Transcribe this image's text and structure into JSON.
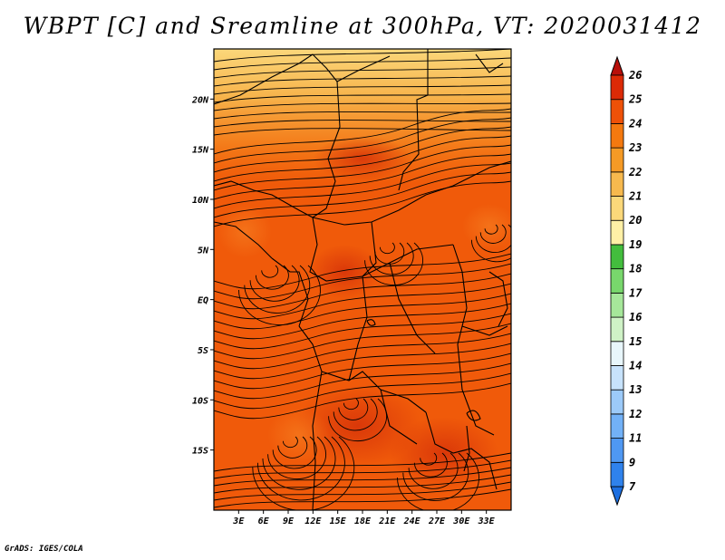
{
  "title": "WBPT [C] and Sreamline at 300hPa, VT: 2020031412",
  "credit": "GrADS: IGES/COLA",
  "map": {
    "lon_range": [
      0,
      36
    ],
    "lat_range": [
      -21,
      25
    ],
    "lon_ticks": [
      {
        "value": 3,
        "label": "3E"
      },
      {
        "value": 6,
        "label": "6E"
      },
      {
        "value": 9,
        "label": "9E"
      },
      {
        "value": 12,
        "label": "12E"
      },
      {
        "value": 15,
        "label": "15E"
      },
      {
        "value": 18,
        "label": "18E"
      },
      {
        "value": 21,
        "label": "21E"
      },
      {
        "value": 24,
        "label": "24E"
      },
      {
        "value": 27,
        "label": "27E"
      },
      {
        "value": 30,
        "label": "30E"
      },
      {
        "value": 33,
        "label": "33E"
      }
    ],
    "lat_ticks": [
      {
        "value": 20,
        "label": "20N"
      },
      {
        "value": 15,
        "label": "15N"
      },
      {
        "value": 10,
        "label": "10N"
      },
      {
        "value": 5,
        "label": "5N"
      },
      {
        "value": 0,
        "label": "EQ"
      },
      {
        "value": -5,
        "label": "5S"
      },
      {
        "value": -10,
        "label": "10S"
      },
      {
        "value": -15,
        "label": "15S"
      }
    ]
  },
  "colorbar": {
    "labels": [
      "7",
      "9",
      "11",
      "12",
      "13",
      "14",
      "15",
      "16",
      "17",
      "18",
      "19",
      "20",
      "21",
      "22",
      "23",
      "24",
      "25",
      "26"
    ],
    "colors": [
      "#1d6fe0",
      "#2f82ec",
      "#4f98f2",
      "#72b1f7",
      "#9ccaf9",
      "#c7e2fb",
      "#e8f6fb",
      "#cff2c6",
      "#a6e79a",
      "#78d76c",
      "#43bd3d",
      "#fff0a6",
      "#fbd87a",
      "#f7b94e",
      "#f59a25",
      "#f4790f",
      "#ee5108",
      "#dc2a06",
      "#b80f0a"
    ]
  },
  "colors": {
    "map_border": "#000000"
  }
}
